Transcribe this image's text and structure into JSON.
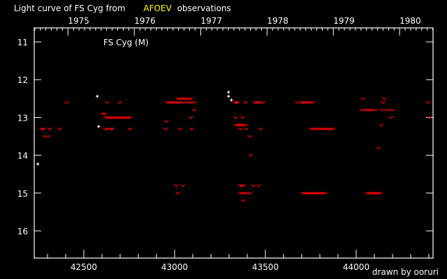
{
  "chart_data": {
    "type": "scatter",
    "title_prefix": "Light curve of FS Cyg from",
    "title_source": "AFOEV",
    "title_suffix": "observations",
    "star_label": "FS Cyg (M)",
    "credit": "drawn by ooruri",
    "xlim": [
      42227,
      44423
    ],
    "ylim": [
      10.63,
      16.72
    ],
    "y_inverted": true,
    "x_ticks": [
      42500,
      43000,
      43500,
      44000
    ],
    "x_tick_labels": [
      "42500",
      "43000",
      "43500",
      "44000"
    ],
    "x_minor_step": 100,
    "y_ticks": [
      11,
      12,
      13,
      14,
      15,
      16
    ],
    "y_tick_labels": [
      "11",
      "12",
      "13",
      "14",
      "15",
      "16"
    ],
    "top_axis_years": [
      {
        "label": "1975",
        "jd": 42413
      },
      {
        "label": "1976",
        "jd": 42778
      },
      {
        "label": "1977",
        "jd": 43144
      },
      {
        "label": "1978",
        "jd": 43509
      },
      {
        "label": "1979",
        "jd": 43874
      },
      {
        "label": "1980",
        "jd": 44239
      }
    ],
    "grid": false,
    "colors": {
      "background": "#000000",
      "axes": "#ffffff",
      "observation": "#ffffff",
      "fainter_than": "#ff0000",
      "source": "#ffff00",
      "credit": "#00ffff"
    },
    "series": [
      {
        "marker": "plus",
        "points": [
          [
            42247,
            14.23
          ],
          [
            42574,
            12.44
          ],
          [
            42582,
            13.24
          ],
          [
            43297,
            12.33
          ],
          [
            43297,
            12.44
          ],
          [
            43313,
            12.54
          ]
        ]
      },
      {
        "marker": "fainter-than-v",
        "points": [
          [
            42407,
            12.6
          ],
          [
            42628,
            12.6
          ],
          [
            42697,
            12.6
          ],
          [
            42613,
            12.9
          ],
          [
            42605,
            12.9
          ],
          [
            42623,
            13.0
          ],
          [
            42633,
            13.0
          ],
          [
            42643,
            13.0
          ],
          [
            42653,
            13.0
          ],
          [
            42663,
            13.0
          ],
          [
            42673,
            13.0
          ],
          [
            42683,
            13.0
          ],
          [
            42693,
            13.0
          ],
          [
            42703,
            13.0
          ],
          [
            42713,
            13.0
          ],
          [
            42723,
            13.0
          ],
          [
            42733,
            13.0
          ],
          [
            42743,
            13.0
          ],
          [
            42753,
            13.0
          ],
          [
            42270,
            13.3
          ],
          [
            42278,
            13.3
          ],
          [
            42313,
            13.3
          ],
          [
            42367,
            13.3
          ],
          [
            42618,
            13.3
          ],
          [
            42630,
            13.3
          ],
          [
            42648,
            13.3
          ],
          [
            42656,
            13.3
          ],
          [
            42755,
            13.3
          ],
          [
            42284,
            13.5
          ],
          [
            42303,
            13.5
          ],
          [
            43019,
            12.5
          ],
          [
            43029,
            12.5
          ],
          [
            43039,
            12.5
          ],
          [
            43049,
            12.5
          ],
          [
            43059,
            12.5
          ],
          [
            43069,
            12.5
          ],
          [
            43079,
            12.5
          ],
          [
            43088,
            12.5
          ],
          [
            42962,
            12.6
          ],
          [
            42972,
            12.6
          ],
          [
            42982,
            12.6
          ],
          [
            42992,
            12.6
          ],
          [
            43002,
            12.6
          ],
          [
            43012,
            12.6
          ],
          [
            43022,
            12.6
          ],
          [
            43031,
            12.6
          ],
          [
            43050,
            12.6
          ],
          [
            43065,
            12.6
          ],
          [
            43080,
            12.6
          ],
          [
            43095,
            12.6
          ],
          [
            43110,
            12.6
          ],
          [
            43109,
            12.8
          ],
          [
            43090,
            13.0
          ],
          [
            42955,
            13.1
          ],
          [
            42951,
            13.3
          ],
          [
            43028,
            13.3
          ],
          [
            43093,
            13.3
          ],
          [
            43009,
            14.8
          ],
          [
            43045,
            14.8
          ],
          [
            43017,
            15.0
          ],
          [
            43340,
            12.6
          ],
          [
            43334,
            12.6
          ],
          [
            43346,
            12.6
          ],
          [
            43391,
            12.6
          ],
          [
            43442,
            12.6
          ],
          [
            43452,
            12.6
          ],
          [
            43462,
            12.6
          ],
          [
            43472,
            12.6
          ],
          [
            43488,
            12.6
          ],
          [
            43674,
            12.6
          ],
          [
            43699,
            12.6
          ],
          [
            43709,
            12.6
          ],
          [
            43719,
            12.6
          ],
          [
            43729,
            12.6
          ],
          [
            43739,
            12.6
          ],
          [
            43749,
            12.6
          ],
          [
            43760,
            12.6
          ],
          [
            44036,
            12.5
          ],
          [
            44154,
            12.5
          ],
          [
            44147,
            12.6
          ],
          [
            44397,
            12.6
          ],
          [
            44031,
            12.8
          ],
          [
            44045,
            12.8
          ],
          [
            44060,
            12.8
          ],
          [
            44070,
            12.8
          ],
          [
            44080,
            12.8
          ],
          [
            44090,
            12.8
          ],
          [
            44104,
            12.8
          ],
          [
            44141,
            12.8
          ],
          [
            44167,
            12.8
          ],
          [
            44186,
            12.8
          ],
          [
            44203,
            12.8
          ],
          [
            43336,
            13.0
          ],
          [
            43374,
            13.0
          ],
          [
            44192,
            13.0
          ],
          [
            44404,
            13.0
          ],
          [
            43338,
            13.2
          ],
          [
            43348,
            13.2
          ],
          [
            43356,
            13.2
          ],
          [
            43364,
            13.2
          ],
          [
            43372,
            13.2
          ],
          [
            43380,
            13.2
          ],
          [
            43392,
            13.2
          ],
          [
            44138,
            13.2
          ],
          [
            43362,
            13.3
          ],
          [
            43393,
            13.3
          ],
          [
            43474,
            13.3
          ],
          [
            43754,
            13.3
          ],
          [
            43765,
            13.3
          ],
          [
            43776,
            13.3
          ],
          [
            43787,
            13.3
          ],
          [
            43798,
            13.3
          ],
          [
            43809,
            13.3
          ],
          [
            43820,
            13.3
          ],
          [
            43831,
            13.3
          ],
          [
            43842,
            13.3
          ],
          [
            43852,
            13.3
          ],
          [
            43862,
            13.3
          ],
          [
            43872,
            13.3
          ],
          [
            43414,
            13.5
          ],
          [
            43420,
            14.0
          ],
          [
            44124,
            13.8
          ],
          [
            43362,
            14.8
          ],
          [
            43370,
            14.8
          ],
          [
            43381,
            14.8
          ],
          [
            43432,
            14.8
          ],
          [
            43464,
            14.8
          ],
          [
            43362,
            15.0
          ],
          [
            43372,
            15.0
          ],
          [
            43385,
            15.0
          ],
          [
            43396,
            15.0
          ],
          [
            43416,
            15.0
          ],
          [
            43708,
            15.0
          ],
          [
            43718,
            15.0
          ],
          [
            43728,
            15.0
          ],
          [
            43738,
            15.0
          ],
          [
            43748,
            15.0
          ],
          [
            43758,
            15.0
          ],
          [
            43768,
            15.0
          ],
          [
            43778,
            15.0
          ],
          [
            43788,
            15.0
          ],
          [
            43798,
            15.0
          ],
          [
            43808,
            15.0
          ],
          [
            43818,
            15.0
          ],
          [
            43830,
            15.0
          ],
          [
            44062,
            15.0
          ],
          [
            44072,
            15.0
          ],
          [
            44082,
            15.0
          ],
          [
            44092,
            15.0
          ],
          [
            44102,
            15.0
          ],
          [
            44112,
            15.0
          ],
          [
            44122,
            15.0
          ],
          [
            44131,
            15.0
          ],
          [
            43378,
            15.2
          ]
        ]
      }
    ]
  }
}
